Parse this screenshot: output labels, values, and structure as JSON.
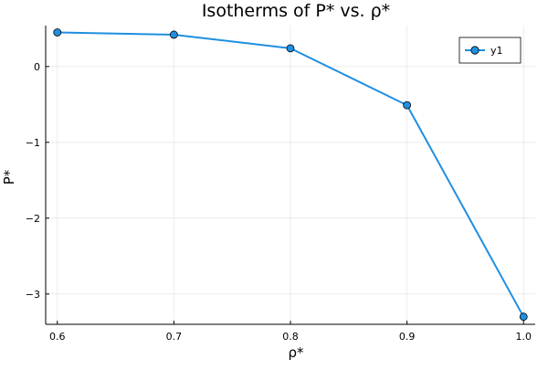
{
  "chart_data": {
    "type": "line",
    "title": "Isotherms of P* vs. ρ*",
    "xlabel": "ρ*",
    "ylabel": "P*",
    "x": [
      0.6,
      0.7,
      0.8,
      0.9,
      1.0
    ],
    "series": [
      {
        "name": "y1",
        "values": [
          0.45,
          0.42,
          0.24,
          -0.51,
          -3.3
        ],
        "color": "#1f8fe0",
        "marker": "circle"
      }
    ],
    "x_ticks": [
      {
        "value": 0.6,
        "label": "0.6"
      },
      {
        "value": 0.7,
        "label": "0.7"
      },
      {
        "value": 0.8,
        "label": "0.8"
      },
      {
        "value": 0.9,
        "label": "0.9"
      },
      {
        "value": 1.0,
        "label": "1.0"
      }
    ],
    "y_ticks": [
      {
        "value": 0,
        "label": "0"
      },
      {
        "value": -1,
        "label": "−1"
      },
      {
        "value": -2,
        "label": "−2"
      },
      {
        "value": -3,
        "label": "−3"
      }
    ],
    "xlim": [
      0.59,
      1.01
    ],
    "ylim": [
      -3.4,
      0.54
    ],
    "grid": true,
    "legend_position": "top-right"
  }
}
